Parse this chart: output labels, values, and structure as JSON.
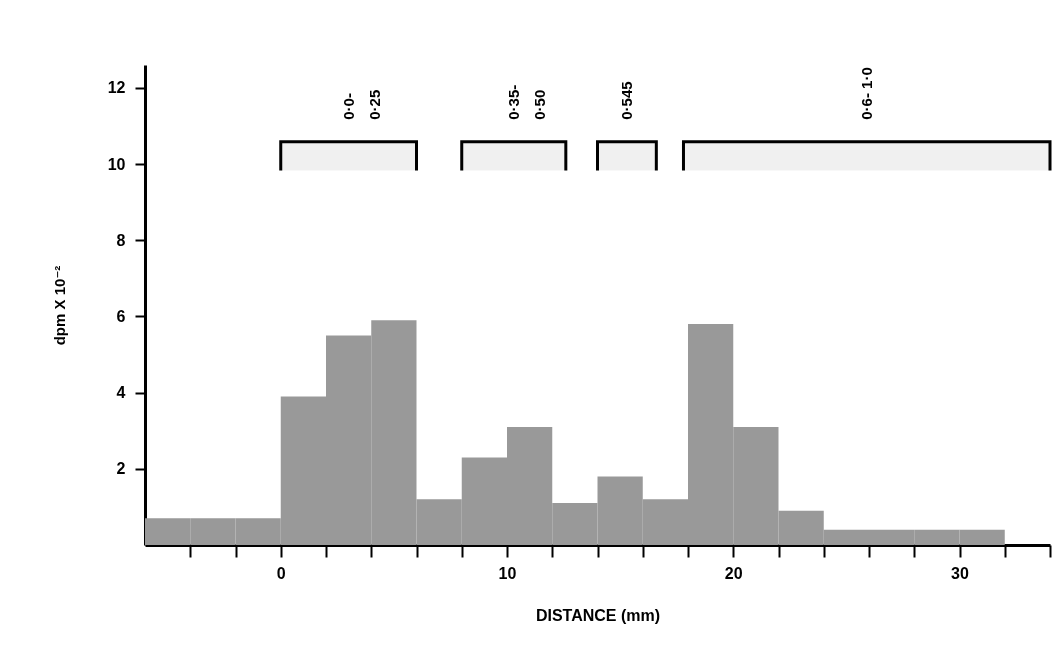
{
  "chart_data": {
    "type": "histogram",
    "xlabel": "DISTANCE (mm)",
    "ylabel": "dpm X 10⁻²",
    "bins": [
      -6,
      -4,
      -2,
      0,
      2,
      4,
      6,
      8,
      10,
      12,
      14,
      16,
      18,
      20,
      22,
      24,
      26,
      28,
      30,
      32
    ],
    "values": [
      0.7,
      0.7,
      0.7,
      3.9,
      5.5,
      5.9,
      1.2,
      2.3,
      3.1,
      1.1,
      1.8,
      1.2,
      5.8,
      3.1,
      0.9,
      0.4,
      0.4,
      0.4,
      0.4
    ],
    "color": "#999999",
    "xlim": [
      -6,
      34
    ],
    "ylim": [
      0,
      12.6
    ],
    "xticks": [
      {
        "value": -4,
        "label": null
      },
      {
        "value": -2,
        "label": null
      },
      0,
      {
        "value": 2,
        "label": null
      },
      {
        "value": 4,
        "label": null
      },
      {
        "value": 6,
        "label": null
      },
      {
        "value": 8,
        "label": null
      },
      10,
      {
        "value": 12,
        "label": null
      },
      {
        "value": 14,
        "label": null
      },
      {
        "value": 16,
        "label": null
      },
      {
        "value": 18,
        "label": null
      },
      20,
      {
        "value": 22,
        "label": null
      },
      {
        "value": 24,
        "label": null
      },
      {
        "value": 26,
        "label": null
      },
      {
        "value": 28,
        "label": null
      },
      30,
      {
        "value": 32,
        "label": null
      },
      {
        "value": 34,
        "label": null
      }
    ],
    "yticks": [
      2,
      4,
      6,
      8,
      10,
      12
    ],
    "grid": false,
    "bands": [
      {
        "axis": "x",
        "from": 0,
        "to": 6,
        "label": "0·0-\n0·25",
        "color": "#000000"
      },
      {
        "axis": "x",
        "from": 8,
        "to": 12.6,
        "label": "0·35-\n0·50",
        "color": "#000000"
      },
      {
        "axis": "x",
        "from": 14,
        "to": 16.6,
        "label": "0·545",
        "color": "#000000"
      },
      {
        "axis": "x",
        "from": 17.8,
        "to": 34,
        "label": "0·6- 1·0",
        "color": "#000000"
      }
    ]
  }
}
